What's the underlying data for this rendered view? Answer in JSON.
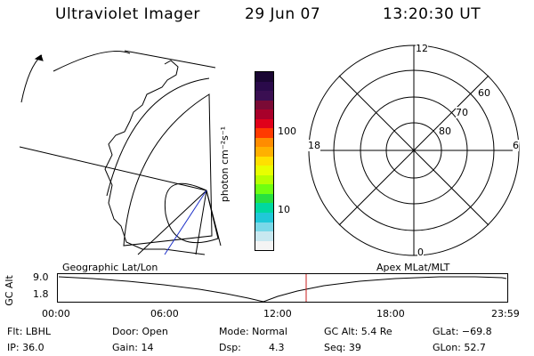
{
  "header": {
    "title": "Ultraviolet Imager",
    "date": "29 Jun 07",
    "time": "13:20:30 UT"
  },
  "colorbar": {
    "unit_label": "photon cm⁻²s⁻¹",
    "ticks": [
      "100",
      "10"
    ],
    "colors": [
      "#1a0633",
      "#2a0a4a",
      "#3a0f52",
      "#7a0a35",
      "#a8002a",
      "#e0001a",
      "#ff3a00",
      "#ff8c00",
      "#ffb000",
      "#ffe000",
      "#e8ff00",
      "#b8ff00",
      "#70ff10",
      "#28e040",
      "#00d8a0",
      "#20c8d8",
      "#7ad8e8",
      "#c8e8f0",
      "#f4f4f4"
    ]
  },
  "polar": {
    "mlt_labels": {
      "top": "12",
      "left": "18",
      "right": "6",
      "bottom": "0"
    },
    "lat_labels": [
      "60",
      "70",
      "80"
    ]
  },
  "timeline": {
    "y_axis_label": "GC Alt",
    "y_ticks": [
      "9.0",
      "1.8"
    ],
    "left_label": "Geographic Lat/Lon",
    "right_label": "Apex MLat/MLT",
    "x_ticks": [
      "00:00",
      "06:00",
      "12:00",
      "18:00",
      "23:59"
    ]
  },
  "info": {
    "flt": "Flt: LBHL",
    "ip": "IP: 36.0",
    "door": "Door: Open",
    "gain": "Gain: 14",
    "mode": "Mode: Normal",
    "dsp_label": "Dsp:",
    "dsp_value": "4.3",
    "gc_alt": "GC Alt: 5.4 Re",
    "seq": "Seq: 39",
    "glat": "GLat: −69.8",
    "glon": "GLon: 52.7"
  }
}
